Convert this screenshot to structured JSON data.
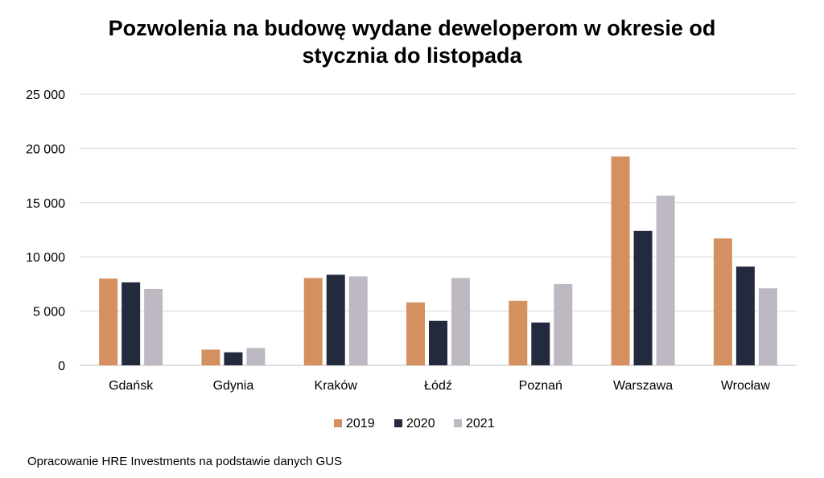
{
  "chart_data": {
    "type": "bar",
    "title_line1": "Pozwolenia na budowę wydane deweloperom w okresie od",
    "title_line2": "stycznia do listopada",
    "categories": [
      "Gdańsk",
      "Gdynia",
      "Kraków",
      "Łódź",
      "Poznań",
      "Warszawa",
      "Wrocław"
    ],
    "series": [
      {
        "name": "2019",
        "color": "#d4905f",
        "values": [
          8000,
          1450,
          8050,
          5800,
          5950,
          19250,
          11700
        ]
      },
      {
        "name": "2020",
        "color": "#232a3d",
        "values": [
          7650,
          1200,
          8350,
          4100,
          3950,
          12400,
          9100
        ]
      },
      {
        "name": "2021",
        "color": "#bdb8c2",
        "values": [
          7050,
          1600,
          8200,
          8050,
          7500,
          15650,
          7100
        ]
      }
    ],
    "yticks": [
      "0",
      "5 000",
      "10 000",
      "15 000",
      "20 000",
      "25 000"
    ],
    "ylim": [
      0,
      25000
    ],
    "grid": true,
    "legend_position": "bottom"
  },
  "source": "Opracowanie HRE Investments na podstawie danych GUS"
}
